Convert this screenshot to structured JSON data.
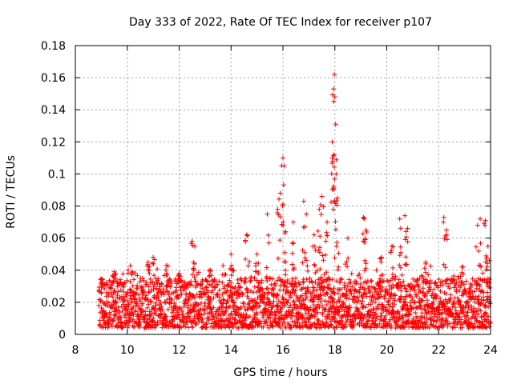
{
  "chart_data": {
    "type": "scatter",
    "title": "Day 333 of 2022, Rate Of TEC Index for receiver p107",
    "xlabel": "GPS time / hours",
    "ylabel": "ROTI / TECUs",
    "xlim": [
      8,
      24
    ],
    "ylim": [
      0,
      0.18
    ],
    "grid": true,
    "marker": "+",
    "color": "#ff0000",
    "x_ticks": [
      8,
      10,
      12,
      14,
      16,
      18,
      20,
      22,
      24
    ],
    "x_tick_labels": [
      "8",
      "10",
      "12",
      "14",
      "16",
      "18",
      "20",
      "22",
      "24"
    ],
    "y_ticks": [
      0,
      0.02,
      0.04,
      0.06,
      0.08,
      0.1,
      0.12,
      0.14,
      0.16,
      0.18
    ],
    "y_tick_labels": [
      "0",
      "0.02",
      "0.04",
      "0.06",
      "0.08",
      "0.1",
      "0.12",
      "0.14",
      "0.16",
      "0.18"
    ],
    "series": [
      {
        "name": "ROTI",
        "x_range": [
          8.9,
          24.0
        ],
        "baseline_band": [
          0.004,
          0.035
        ],
        "notable_points": [
          {
            "x": 9.0,
            "y": 0.034
          },
          {
            "x": 9.5,
            "y": 0.039
          },
          {
            "x": 10.2,
            "y": 0.039
          },
          {
            "x": 10.8,
            "y": 0.045
          },
          {
            "x": 11.0,
            "y": 0.048
          },
          {
            "x": 11.5,
            "y": 0.043
          },
          {
            "x": 12.0,
            "y": 0.038
          },
          {
            "x": 12.5,
            "y": 0.058
          },
          {
            "x": 12.6,
            "y": 0.055
          },
          {
            "x": 13.2,
            "y": 0.04
          },
          {
            "x": 14.0,
            "y": 0.05
          },
          {
            "x": 14.6,
            "y": 0.062
          },
          {
            "x": 15.0,
            "y": 0.05
          },
          {
            "x": 15.4,
            "y": 0.075
          },
          {
            "x": 15.8,
            "y": 0.078
          },
          {
            "x": 15.9,
            "y": 0.088
          },
          {
            "x": 16.0,
            "y": 0.11
          },
          {
            "x": 16.05,
            "y": 0.105
          },
          {
            "x": 16.1,
            "y": 0.064
          },
          {
            "x": 16.4,
            "y": 0.07
          },
          {
            "x": 16.8,
            "y": 0.083
          },
          {
            "x": 16.9,
            "y": 0.075
          },
          {
            "x": 17.2,
            "y": 0.062
          },
          {
            "x": 17.4,
            "y": 0.078
          },
          {
            "x": 17.5,
            "y": 0.086
          },
          {
            "x": 17.7,
            "y": 0.07
          },
          {
            "x": 17.9,
            "y": 0.12
          },
          {
            "x": 17.95,
            "y": 0.153
          },
          {
            "x": 17.98,
            "y": 0.162
          },
          {
            "x": 18.0,
            "y": 0.148
          },
          {
            "x": 18.03,
            "y": 0.131
          },
          {
            "x": 18.05,
            "y": 0.1
          },
          {
            "x": 18.1,
            "y": 0.085
          },
          {
            "x": 18.5,
            "y": 0.06
          },
          {
            "x": 19.1,
            "y": 0.073
          },
          {
            "x": 19.2,
            "y": 0.065
          },
          {
            "x": 19.8,
            "y": 0.048
          },
          {
            "x": 20.2,
            "y": 0.055
          },
          {
            "x": 20.5,
            "y": 0.072
          },
          {
            "x": 20.7,
            "y": 0.074
          },
          {
            "x": 20.8,
            "y": 0.066
          },
          {
            "x": 21.5,
            "y": 0.045
          },
          {
            "x": 22.2,
            "y": 0.073
          },
          {
            "x": 22.3,
            "y": 0.065
          },
          {
            "x": 22.9,
            "y": 0.042
          },
          {
            "x": 23.5,
            "y": 0.068
          },
          {
            "x": 23.6,
            "y": 0.072
          },
          {
            "x": 23.8,
            "y": 0.071
          },
          {
            "x": 23.9,
            "y": 0.055
          }
        ]
      }
    ]
  }
}
